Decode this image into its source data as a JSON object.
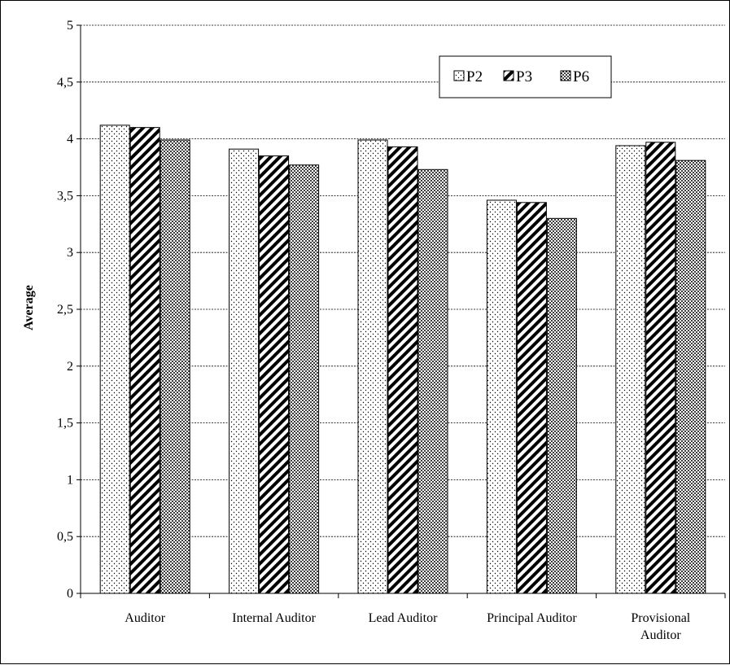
{
  "chart_data": {
    "type": "bar",
    "categories": [
      "Auditor",
      "Internal Auditor",
      "Lead Auditor",
      "Principal Auditor",
      "Provisional Auditor"
    ],
    "category_lines": [
      [
        "Auditor"
      ],
      [
        "Internal Auditor"
      ],
      [
        "Lead Auditor"
      ],
      [
        "Principal Auditor"
      ],
      [
        "Provisional",
        "Auditor"
      ]
    ],
    "series": [
      {
        "name": "P2",
        "pattern": "dots-sparse",
        "values": [
          4.12,
          3.91,
          3.99,
          3.46,
          3.94
        ]
      },
      {
        "name": "P3",
        "pattern": "diagonal-hatch",
        "values": [
          4.1,
          3.85,
          3.93,
          3.44,
          3.97
        ]
      },
      {
        "name": "P6",
        "pattern": "dots-dense",
        "values": [
          3.99,
          3.77,
          3.73,
          3.3,
          3.81
        ]
      }
    ],
    "ylabel": "Average",
    "xlabel": "",
    "ylim": [
      0,
      5
    ],
    "yticks": [
      "0",
      "0,5",
      "1",
      "1,5",
      "2",
      "2,5",
      "3",
      "3,5",
      "4",
      "4,5",
      "5"
    ],
    "ytick_values": [
      0,
      0.5,
      1,
      1.5,
      2,
      2.5,
      3,
      3.5,
      4,
      4.5,
      5
    ],
    "grid": true,
    "legend_position": "top-right"
  }
}
